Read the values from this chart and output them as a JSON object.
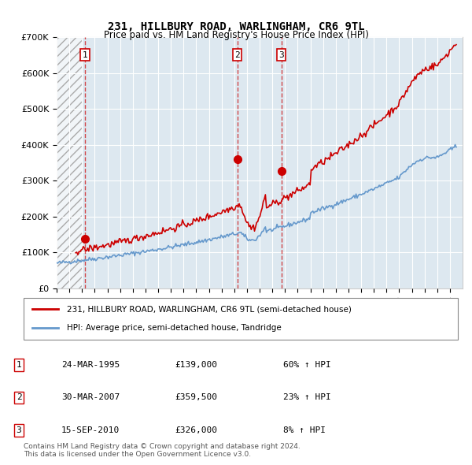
{
  "title1": "231, HILLBURY ROAD, WARLINGHAM, CR6 9TL",
  "title2": "Price paid vs. HM Land Registry's House Price Index (HPI)",
  "ylabel": "",
  "ylim": [
    0,
    700000
  ],
  "yticks": [
    0,
    100000,
    200000,
    300000,
    400000,
    500000,
    600000,
    700000
  ],
  "ytick_labels": [
    "£0",
    "£100K",
    "£200K",
    "£300K",
    "£400K",
    "£500K",
    "£600K",
    "£700K"
  ],
  "xlim_start": 1993.0,
  "xlim_end": 2025.0,
  "hpi_color": "#6699cc",
  "price_color": "#cc0000",
  "transaction_dates": [
    1995.23,
    2007.25,
    2010.71
  ],
  "transaction_prices": [
    139000,
    359500,
    326000
  ],
  "transaction_labels": [
    "1",
    "2",
    "3"
  ],
  "legend_line1": "231, HILLBURY ROAD, WARLINGHAM, CR6 9TL (semi-detached house)",
  "legend_line2": "HPI: Average price, semi-detached house, Tandridge",
  "table_rows": [
    [
      "1",
      "24-MAR-1995",
      "£139,000",
      "60% ↑ HPI"
    ],
    [
      "2",
      "30-MAR-2007",
      "£359,500",
      "23% ↑ HPI"
    ],
    [
      "3",
      "15-SEP-2010",
      "£326,000",
      "8% ↑ HPI"
    ]
  ],
  "footnote": "Contains HM Land Registry data © Crown copyright and database right 2024.\nThis data is licensed under the Open Government Licence v3.0.",
  "bg_hatch_color": "#cccccc",
  "plot_bg_color": "#dde8f0",
  "hatch_end": 1995.0
}
